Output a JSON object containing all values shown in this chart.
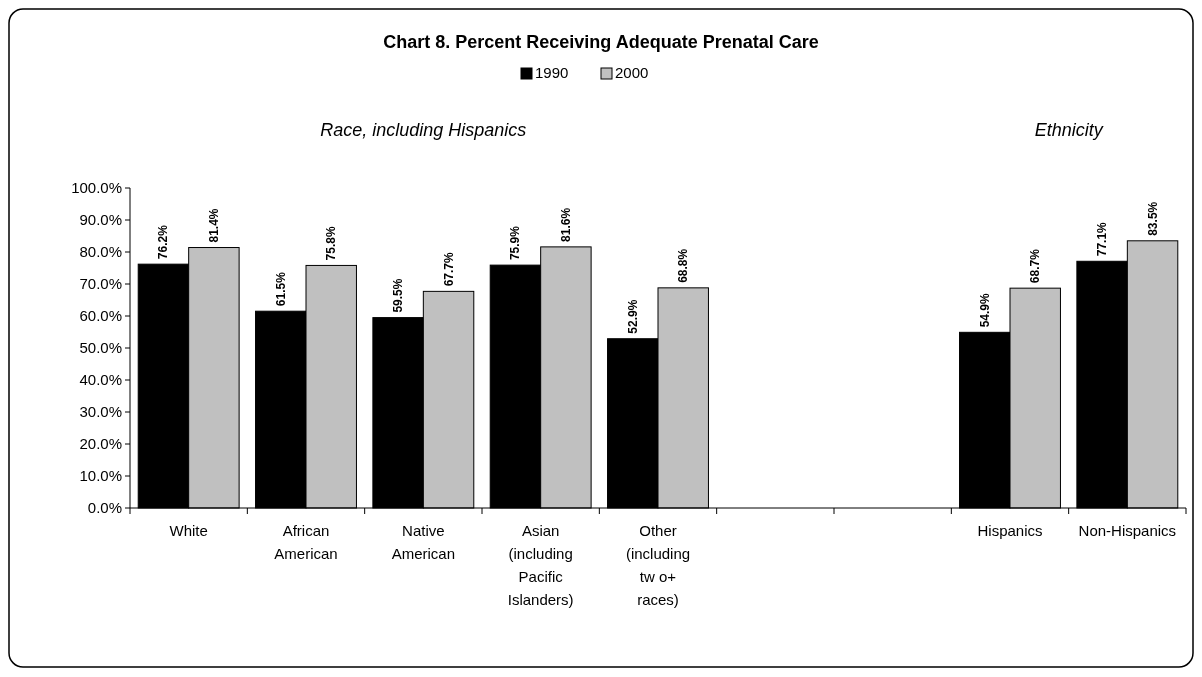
{
  "chart_data": {
    "type": "bar",
    "title": "Chart 8. Percent Receiving Adequate Prenatal Care",
    "annotations": [
      "Race, including Hispanics",
      "Ethnicity"
    ],
    "categories": [
      "White",
      "African American",
      "Native American",
      "Asian (including Pacific Islanders)",
      "Other (including tw o+ races)",
      null,
      null,
      "Hispanics",
      "Non-Hispanics"
    ],
    "series": [
      {
        "name": "1990",
        "color": "#000000",
        "values": [
          76.2,
          61.5,
          59.5,
          75.9,
          52.9,
          null,
          null,
          54.9,
          77.1
        ],
        "value_labels": [
          "76.2%",
          "61.5%",
          "59.5%",
          "75.9%",
          "52.9%",
          null,
          null,
          "54.9%",
          "77.1%"
        ]
      },
      {
        "name": "2000",
        "color": "#c0c0c0",
        "values": [
          81.4,
          75.8,
          67.7,
          81.6,
          68.8,
          null,
          null,
          68.7,
          83.5
        ],
        "value_labels": [
          "81.4%",
          "75.8%",
          "67.7%",
          "81.6%",
          "68.8%",
          null,
          null,
          "68.7%",
          "83.5%"
        ]
      }
    ],
    "ylim": [
      0,
      100
    ],
    "yticks": [
      {
        "value": 0,
        "label": "0.0%"
      },
      {
        "value": 10,
        "label": "10.0%"
      },
      {
        "value": 20,
        "label": "20.0%"
      },
      {
        "value": 30,
        "label": "30.0%"
      },
      {
        "value": 40,
        "label": "40.0%"
      },
      {
        "value": 50,
        "label": "50.0%"
      },
      {
        "value": 60,
        "label": "60.0%"
      },
      {
        "value": 70,
        "label": "70.0%"
      },
      {
        "value": 80,
        "label": "80.0%"
      },
      {
        "value": 90,
        "label": "90.0%"
      },
      {
        "value": 100,
        "label": "100.0%"
      }
    ],
    "grid": false,
    "legend": "top"
  }
}
